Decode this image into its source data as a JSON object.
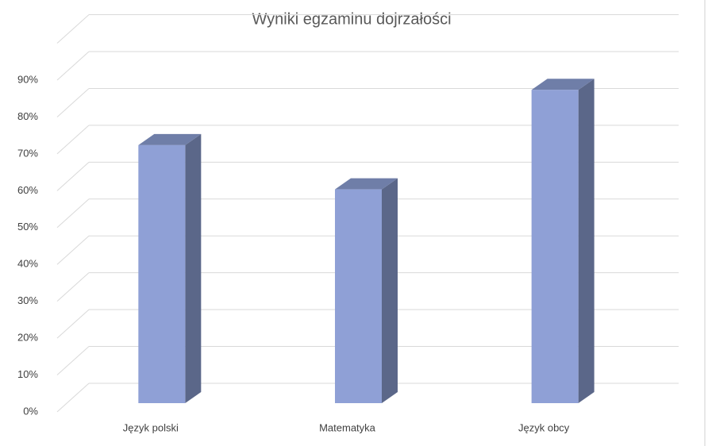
{
  "chart_data": {
    "type": "bar3d",
    "title": "Wyniki egzaminu dojrzałości",
    "categories": [
      "Język polski",
      "Matematyka",
      "Język obcy"
    ],
    "values": [
      70,
      58,
      85
    ],
    "color": "#8fa0d6",
    "ylim": [
      0,
      100
    ],
    "yticks": [
      {
        "value": 0,
        "label": "0%"
      },
      {
        "value": 10,
        "label": "10%"
      },
      {
        "value": 20,
        "label": "20%"
      },
      {
        "value": 30,
        "label": "30%"
      },
      {
        "value": 40,
        "label": "40%"
      },
      {
        "value": 50,
        "label": "50%"
      },
      {
        "value": 60,
        "label": "60%"
      },
      {
        "value": 70,
        "label": "70%"
      },
      {
        "value": 80,
        "label": "80%"
      },
      {
        "value": 90,
        "label": "90%"
      }
    ],
    "grid": true
  }
}
